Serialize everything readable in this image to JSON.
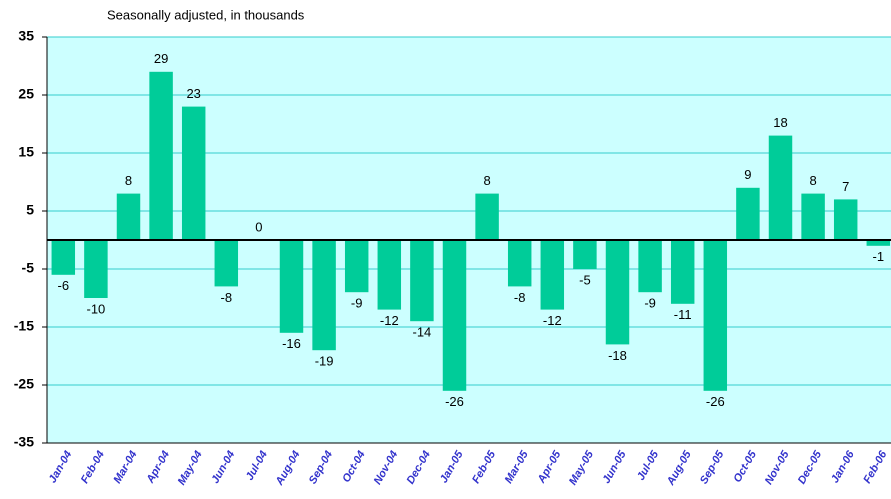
{
  "chart_data": {
    "type": "bar",
    "subtitle": "Seasonally adjusted, in thousands",
    "categories": [
      "Jan-04",
      "Feb-04",
      "Mar-04",
      "Apr-04",
      "May-04",
      "Jun-04",
      "Jul-04",
      "Aug-04",
      "Sep-04",
      "Oct-04",
      "Nov-04",
      "Dec-04",
      "Jan-05",
      "Feb-05",
      "Mar-05",
      "Apr-05",
      "May-05",
      "Jun-05",
      "Jul-05",
      "Aug-05",
      "Sep-05",
      "Oct-05",
      "Nov-05",
      "Dec-05",
      "Jan-06",
      "Feb-06"
    ],
    "values": [
      -6,
      -10,
      8,
      29,
      23,
      -8,
      0,
      -16,
      -19,
      -9,
      -12,
      -14,
      -26,
      8,
      -8,
      -12,
      -5,
      -18,
      -9,
      -11,
      -26,
      9,
      18,
      8,
      7,
      -1
    ],
    "color": "#00cc99",
    "background": "#ccffff",
    "ylim": [
      -35,
      35
    ],
    "yticks": [
      35,
      25,
      15,
      5,
      -5,
      -15,
      -25,
      -35
    ],
    "grid": true
  }
}
